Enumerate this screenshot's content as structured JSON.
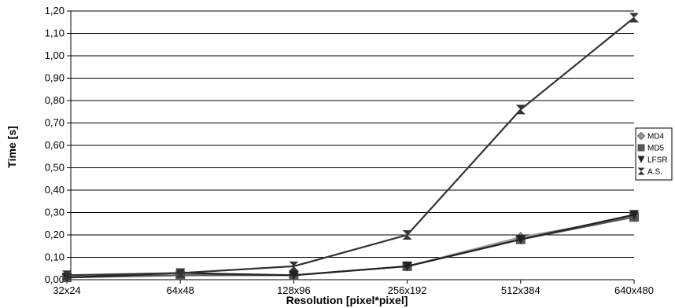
{
  "chart_data": {
    "type": "line",
    "xlabel": "Resolution [pixel*pixel]",
    "ylabel": "Time [s]",
    "categories": [
      "32x24",
      "64x48",
      "128x96",
      "256x192",
      "512x384",
      "640x480"
    ],
    "ylim": [
      0,
      1.2
    ],
    "ytick_step": 0.1,
    "ytick_labels": [
      "0,00",
      "0,10",
      "0,20",
      "0,30",
      "0,40",
      "0,50",
      "0,60",
      "0,70",
      "0,80",
      "0,90",
      "1,00",
      "1,10",
      "1,20"
    ],
    "grid": true,
    "legend_position": "right",
    "series": [
      {
        "name": "MD4",
        "marker": "diamond",
        "color": "#999999",
        "values": [
          0.01,
          0.02,
          0.02,
          0.06,
          0.19,
          0.28
        ]
      },
      {
        "name": "MD5",
        "marker": "square",
        "color": "#555555",
        "values": [
          0.01,
          0.02,
          0.02,
          0.06,
          0.18,
          0.28
        ]
      },
      {
        "name": "LFSR",
        "marker": "triangle-down",
        "color": "#222222",
        "values": [
          0.01,
          0.03,
          0.02,
          0.06,
          0.18,
          0.29
        ]
      },
      {
        "name": "A.S.",
        "marker": "hourglass",
        "color": "#333333",
        "values": [
          0.02,
          0.03,
          0.06,
          0.2,
          0.76,
          1.17
        ]
      }
    ]
  }
}
